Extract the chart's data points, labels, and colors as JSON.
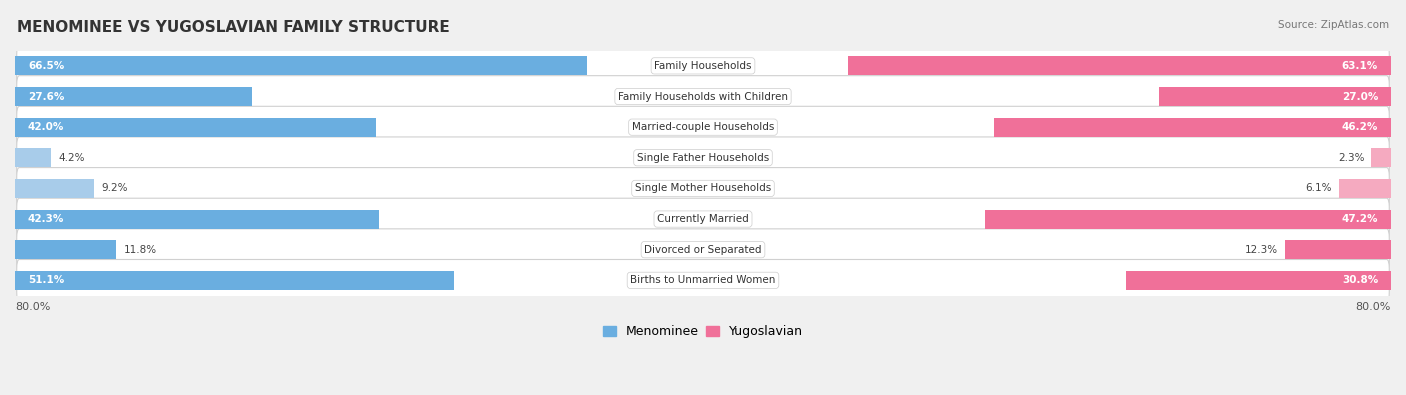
{
  "title": "MENOMINEE VS YUGOSLAVIAN FAMILY STRUCTURE",
  "source": "Source: ZipAtlas.com",
  "categories": [
    "Family Households",
    "Family Households with Children",
    "Married-couple Households",
    "Single Father Households",
    "Single Mother Households",
    "Currently Married",
    "Divorced or Separated",
    "Births to Unmarried Women"
  ],
  "menominee_values": [
    66.5,
    27.6,
    42.0,
    4.2,
    9.2,
    42.3,
    11.8,
    51.1
  ],
  "yugoslavian_values": [
    63.1,
    27.0,
    46.2,
    2.3,
    6.1,
    47.2,
    12.3,
    30.8
  ],
  "axis_max": 80.0,
  "menominee_color_strong": "#6aaee0",
  "menominee_color_light": "#a8ccea",
  "yugoslavian_color_strong": "#f07099",
  "yugoslavian_color_light": "#f5aac0",
  "bg_color": "#f0f0f0",
  "row_bg_odd": "#f8f8f8",
  "row_bg_even": "#ebebeb",
  "legend_menominee": "Menominee",
  "legend_yugoslavian": "Yugoslavian",
  "threshold_strong": 10.0
}
